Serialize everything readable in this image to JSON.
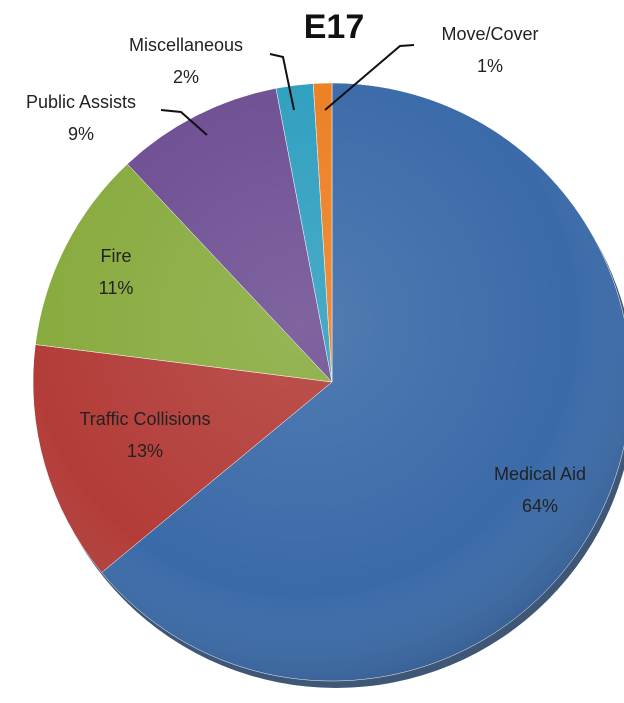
{
  "chart_data": {
    "type": "pie",
    "title": "E17",
    "slices": [
      {
        "label": "Medical Aid",
        "percent_label": "64%",
        "value": 64,
        "color": "#3a6aa8"
      },
      {
        "label": "Traffic Collisions",
        "percent_label": "13%",
        "value": 13,
        "color": "#b33c38"
      },
      {
        "label": "Fire",
        "percent_label": "11%",
        "value": 11,
        "color": "#88ab3f"
      },
      {
        "label": "Public Assists",
        "percent_label": "9%",
        "value": 9,
        "color": "#6e4f93"
      },
      {
        "label": "Miscellaneous",
        "percent_label": "2%",
        "value": 2,
        "color": "#2f9fbf"
      },
      {
        "label": "Move/Cover",
        "percent_label": "1%",
        "value": 1,
        "color": "#ec7f22"
      }
    ],
    "legend": "none",
    "grid": false
  }
}
